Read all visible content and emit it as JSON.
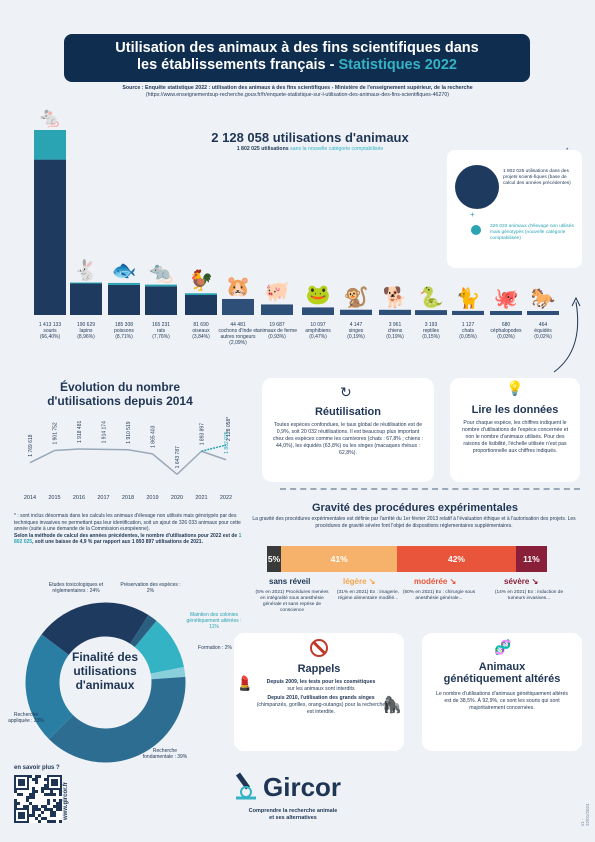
{
  "header": {
    "title_line1": "Utilisation des animaux à des fins scientifiques dans",
    "title_line2": "les établissements français - ",
    "title_highlight": "Statistiques 2022",
    "source_label": "Source : Enquête statistique 2022 : utilisation des animaux à des fins scientifiques - Ministère de l'enseignement supérieur, de la recherche",
    "source_url": "(https://www.enseignementsup-recherche.gouv.fr/fr/enquete-statistique-sur-l-utilisation-des-animaux-des-fins-scientifiques-46270)"
  },
  "totals": {
    "main": "2 128 058 utilisations d'animaux",
    "sub_value": "1 802 025 utilisations",
    "sub_text": "sans la nouvelle catégorie comptabilisée"
  },
  "legend": {
    "dark_text": "1 802 025 utilisations dans des projets scienti-fiques (base de calcul des années précédentes)",
    "plus": "+",
    "teal_text": "326 033 animaux d'élevage non utilisés mais génotypés (nouvelle catégorie comptabilisée)",
    "star": "*",
    "colors": {
      "dark": "#1f3a5f",
      "teal": "#2aa3b2"
    }
  },
  "chart_data": [
    {
      "type": "bar",
      "categories": [
        "souris",
        "lapins",
        "poissons",
        "rats",
        "oiseaux",
        "cochons d'Inde et autres rongeurs",
        "animaux de ferme",
        "amphibiens",
        "singes",
        "chiens",
        "reptiles",
        "chats",
        "céphalopodes",
        "équidés"
      ],
      "series": [
        {
          "values": [
            1413133,
            190629,
            185308,
            165231,
            81690,
            44481,
            19687,
            10097,
            4147,
            3961,
            3193,
            1127,
            680,
            464
          ]
        }
      ],
      "value_labels": [
        "1 413 133",
        "190 629",
        "185 308",
        "165 231",
        "81 690",
        "44 481",
        "19 687",
        "10 097",
        "4 147",
        "3 961",
        "3 193",
        "1 127",
        "680",
        "464"
      ],
      "percent_labels": [
        "(66,40%)",
        "(8,96%)",
        "(8,71%)",
        "(7,76%)",
        "(3,84%)",
        "(2,09%)",
        "(0,93%)",
        "(0,47%)",
        "(0,19%)",
        "(0,19%)",
        "(0,15%)",
        "(0,05%)",
        "(0,03%)",
        "(0,02%)"
      ],
      "teal_top_fraction": [
        0.16,
        0.03,
        0.06,
        0.06,
        0.08,
        0,
        0,
        0,
        0,
        0,
        0,
        0,
        0,
        0
      ],
      "icons": [
        "mouse-icon",
        "rabbit-icon",
        "fish-icon",
        "rat-icon",
        "bird-icon",
        "guinea-pig-icon",
        "farm-animal-icon",
        "frog-icon",
        "monkey-icon",
        "dog-icon",
        "snake-icon",
        "cat-icon",
        "octopus-icon",
        "horse-icon"
      ]
    },
    {
      "type": "line",
      "title": "Évolution du nombre d'utilisations depuis 2014",
      "x": [
        "2014",
        "2015",
        "2016",
        "2017",
        "2018",
        "2019",
        "2020",
        "2021",
        "2022"
      ],
      "values": [
        1769618,
        1901752,
        1918481,
        1914174,
        1910519,
        1865403,
        1643787,
        1893897,
        1802025
      ],
      "value_labels": [
        "1 769 618",
        "1 901 752",
        "1 918 481",
        "1 914 174",
        "1 910 519",
        "1 865 403",
        "1 643 787",
        "1 893 897",
        "1 802 025"
      ],
      "label_2022_total": "2 128 058*"
    },
    {
      "type": "bar",
      "title": "Gravité des procédures expérimentales",
      "categories": [
        "sans réveil",
        "légère",
        "modérée",
        "sévère"
      ],
      "values": [
        5,
        41,
        42,
        11
      ],
      "value_labels": [
        "5%",
        "41%",
        "42%",
        "11%"
      ],
      "colors": [
        "#3a3a3a",
        "#f6b26b",
        "#e8553a",
        "#8a1f3a"
      ]
    },
    {
      "type": "pie",
      "title": "Finalité des utilisations d'animaux",
      "categories": [
        "Etudes toxicologiques et réglementaires",
        "Préservation des espèces",
        "Maintien des colonies génétiquement altérées",
        "Formation",
        "Recherche fondamentale",
        "Recherche appliquée"
      ],
      "values": [
        24,
        2,
        11,
        2,
        39,
        23
      ],
      "labels": [
        "Etudes toxicologiques et réglementaires : 24%",
        "Préservation des espèces : 2%",
        "Maintien des colonies génétiquement altérées : 11%",
        "Formation : 2%",
        "Recherche fondamentale : 39%",
        "Recherche appliquée : 23%"
      ],
      "colors": [
        "#1f3a5f",
        "#2a5f7f",
        "#34b3c4",
        "#8ad0dc",
        "#2d6d92",
        "#2a7ea3"
      ]
    }
  ],
  "evolution": {
    "title_line1": "Évolution du nombre",
    "title_line2": "d'utilisations depuis 2014",
    "note1": "* : sont inclus désormais dans les calculs les animaux d'élevage non utilisés mais génotypés par des techniques invasives ne permettant pas leur identification, soit un ajout de 326 033 animaux pour cette année (suite à une demande de la Commission européenne).",
    "note2a": "Selon la méthode de calcul des années précédentes, le nombre d'utilisations pour 2022 est de ",
    "note2b": "1 802 025",
    "note2c": ", soit une baisse de 4,9 % par rapport aux 1 893 897 utilisations de 2021."
  },
  "reutilisation": {
    "title": "Réutilisation",
    "text": "Toutes espèces confondues, le taux global de réutilisation est de 0,9%, soit 20 032 réutilisations. Il est beaucoup plus important chez des espèces comme les carnivores (chats : 67,8% ; chiens : 44,0%), les équidés (63,8%) ou les singes (macaques rhésus : 62,8%)."
  },
  "lire": {
    "title": "Lire les données",
    "text": "Pour chaque espèce, les chiffres indiquent le nombre d'utilisations de l'espèce concernée et non le nombre d'animaux utilisés. Pour des raisons de lisibilité, l'échelle utilisée n'est pas proportionnelle aux chiffres indiqués."
  },
  "gravite": {
    "title": "Gravité des procédures expérimentales",
    "desc": "La gravité des procédures expérimentales est définie par l'arrêté du 1er février 2013 relatif à l'évaluation éthique et à l'autorisation des projets. Les procédures de gravité sévère font l'objet de dispositions réglementaires supplémentaires.",
    "items": [
      {
        "name": "sans réveil",
        "detail": "(5% en 2021) Procédures menées en intégralité sous anesthésie générale et sans reprise de conscience"
      },
      {
        "name": "légère",
        "detail": "(31% en 2021) Ex : imagerie, régime alimentaire modifié..."
      },
      {
        "name": "modérée",
        "detail": "(50% en 2021) Ex : chirurgie sous anesthésie générale..."
      },
      {
        "name": "sévère",
        "detail": "(14% en 2021) Ex : induction de tumeurs invasives..."
      }
    ]
  },
  "rappels": {
    "title": "Rappels",
    "line1_bold": "Depuis 2009, les tests pour les cosmétiques",
    "line1": "sur les animaux sont interdits",
    "line2_bold": "Depuis 2010, l'utilisation des grands singes",
    "line2": "(chimpanzés, gorilles, orang-outangs) pour la recherche est interdite."
  },
  "genetique": {
    "title_line1": "Animaux",
    "title_line2": "génétiquement altérés",
    "text": "Le nombre d'utilisations d'animaux génétiquement altérés est de 38,5%. À 92,9%, ce sont les souris qui sont majoritairement concernées."
  },
  "footer": {
    "en_savoir": "en savoir plus ?",
    "url": "www.gircor.fr",
    "brand": "Gircor",
    "tagline_line1": "Comprendre la recherche animale",
    "tagline_line2": "et ses alternatives",
    "version": "v1 - 22/01/2024"
  },
  "donut": {
    "center_line1": "Finalité des",
    "center_line2": "utilisations",
    "center_line3": "d'animaux"
  }
}
